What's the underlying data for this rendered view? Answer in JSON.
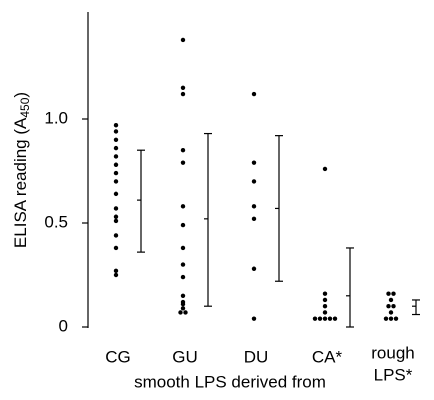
{
  "chart_data": {
    "type": "strip",
    "ylabel_prefix": "ELISA reading (A",
    "ylabel_subscript": "450",
    "ylabel_suffix": ")",
    "xlabel": "smooth LPS derived from",
    "ylim": [
      0,
      1.5
    ],
    "yticks": [
      0,
      0.5,
      {
        "value": 1,
        "label": "1.0"
      }
    ],
    "color": "#000000",
    "groups": [
      {
        "label_lines": [
          "CG"
        ],
        "points": [
          0.97,
          0.94,
          0.9,
          0.86,
          0.82,
          0.78,
          0.74,
          0.7,
          0.64,
          0.57,
          0.53,
          0.51,
          0.44,
          0.38,
          0.27,
          0.25
        ],
        "mean": 0.61,
        "upper": 0.85,
        "lower": 0.36
      },
      {
        "label_lines": [
          "GU"
        ],
        "points": [
          1.38,
          1.15,
          1.12,
          0.85,
          0.79,
          0.58,
          0.49,
          0.38,
          0.3,
          0.24,
          0.15,
          0.12,
          0.11,
          0.09,
          0.07,
          0.07
        ],
        "mean": 0.52,
        "upper": 0.93,
        "lower": 0.1
      },
      {
        "label_lines": [
          "DU"
        ],
        "points": [
          1.12,
          0.79,
          0.7,
          0.58,
          0.52,
          0.28,
          0.04
        ],
        "mean": 0.57,
        "upper": 0.92,
        "lower": 0.22
      },
      {
        "label_lines": [
          "CA*"
        ],
        "points": [
          0.76,
          0.16,
          0.13,
          0.1,
          0.07,
          0.04,
          0.04,
          0.04,
          0.04,
          0.04
        ],
        "mean": 0.15,
        "upper": 0.38,
        "lower": 0
      },
      {
        "label_lines": [
          "rough",
          "LPS*"
        ],
        "points": [
          0.16,
          0.16,
          0.13,
          0.1,
          0.1,
          0.07,
          0.04,
          0.04,
          0.04
        ],
        "mean": 0.1,
        "upper": 0.13,
        "lower": 0.06
      }
    ]
  }
}
